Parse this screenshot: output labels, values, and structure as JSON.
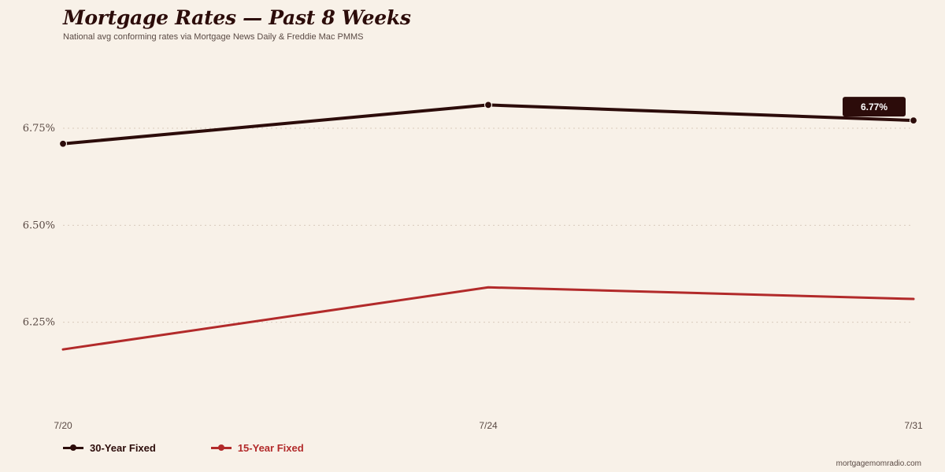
{
  "header": {
    "title": "Mortgage Rates — Past 8 Weeks",
    "subtitle": "National avg conforming rates via Mortgage News Daily & Freddie Mac PMMS"
  },
  "chart_data": {
    "type": "line",
    "x": [
      "7/20",
      "7/24",
      "7/31"
    ],
    "yticks": [
      "6.25%",
      "6.50%",
      "6.75%"
    ],
    "ylim": [
      6.0,
      6.95
    ],
    "grid": true,
    "legend_position": "bottom-left",
    "series": [
      {
        "name": "30-Year Fixed",
        "values": [
          6.71,
          6.81,
          6.77
        ],
        "color": "#2c0c0a",
        "markers": true
      },
      {
        "name": "15-Year Fixed",
        "values": [
          6.18,
          6.34,
          6.31
        ],
        "color": "#b22a2a",
        "markers": false
      }
    ],
    "annotation": {
      "series": 0,
      "point": 2,
      "label": "6.77%"
    }
  },
  "legend": {
    "items": [
      {
        "label": "30-Year Fixed",
        "color": "#2c0c0a"
      },
      {
        "label": "15-Year Fixed",
        "color": "#b22a2a"
      }
    ]
  },
  "footer": {
    "credit": "mortgagemomradio.com"
  }
}
